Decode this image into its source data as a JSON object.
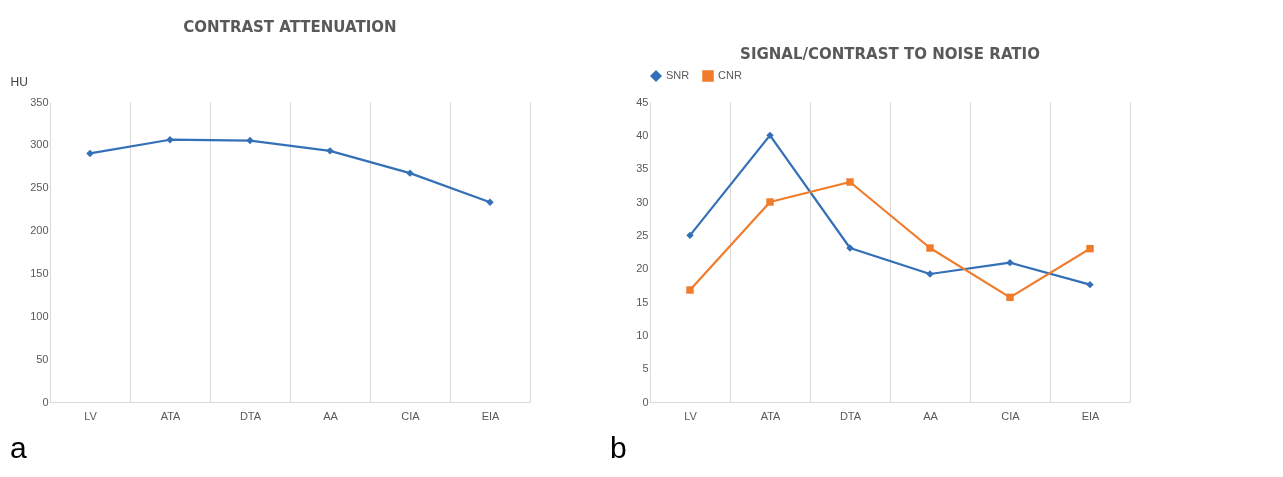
{
  "chart_data": [
    {
      "type": "line",
      "title": "CONTRAST ATTENUATION",
      "ylabel": "HU",
      "categories": [
        "LV",
        "ATA",
        "DTA",
        "AA",
        "CIA",
        "EIA"
      ],
      "values": [
        290,
        306,
        305,
        293,
        267,
        233
      ],
      "color": "#3470b8",
      "marker": "diamond",
      "ylim": [
        0,
        350
      ],
      "yticks": [
        0,
        50,
        100,
        150,
        200,
        250,
        300,
        350
      ],
      "grid": "x",
      "annotations": [
        "a"
      ]
    },
    {
      "type": "line",
      "title": "SIGNAL/CONTRAST TO NOISE RATIO",
      "categories": [
        "LV",
        "ATA",
        "DTA",
        "AA",
        "CIA",
        "EIA"
      ],
      "series": [
        {
          "name": "SNR",
          "color": "#3470b8",
          "marker": "diamond",
          "values": [
            25,
            40,
            23.1,
            19.2,
            20.9,
            17.6
          ]
        },
        {
          "name": "CNR",
          "color": "#f07b2a",
          "marker": "square",
          "values": [
            16.8,
            30,
            33,
            23.1,
            15.7,
            23
          ]
        }
      ],
      "ylim": [
        0,
        45
      ],
      "yticks": [
        0,
        5,
        10,
        15,
        20,
        25,
        30,
        35,
        40,
        45
      ],
      "grid": "x",
      "legend": "top",
      "annotations": [
        "b"
      ]
    }
  ]
}
